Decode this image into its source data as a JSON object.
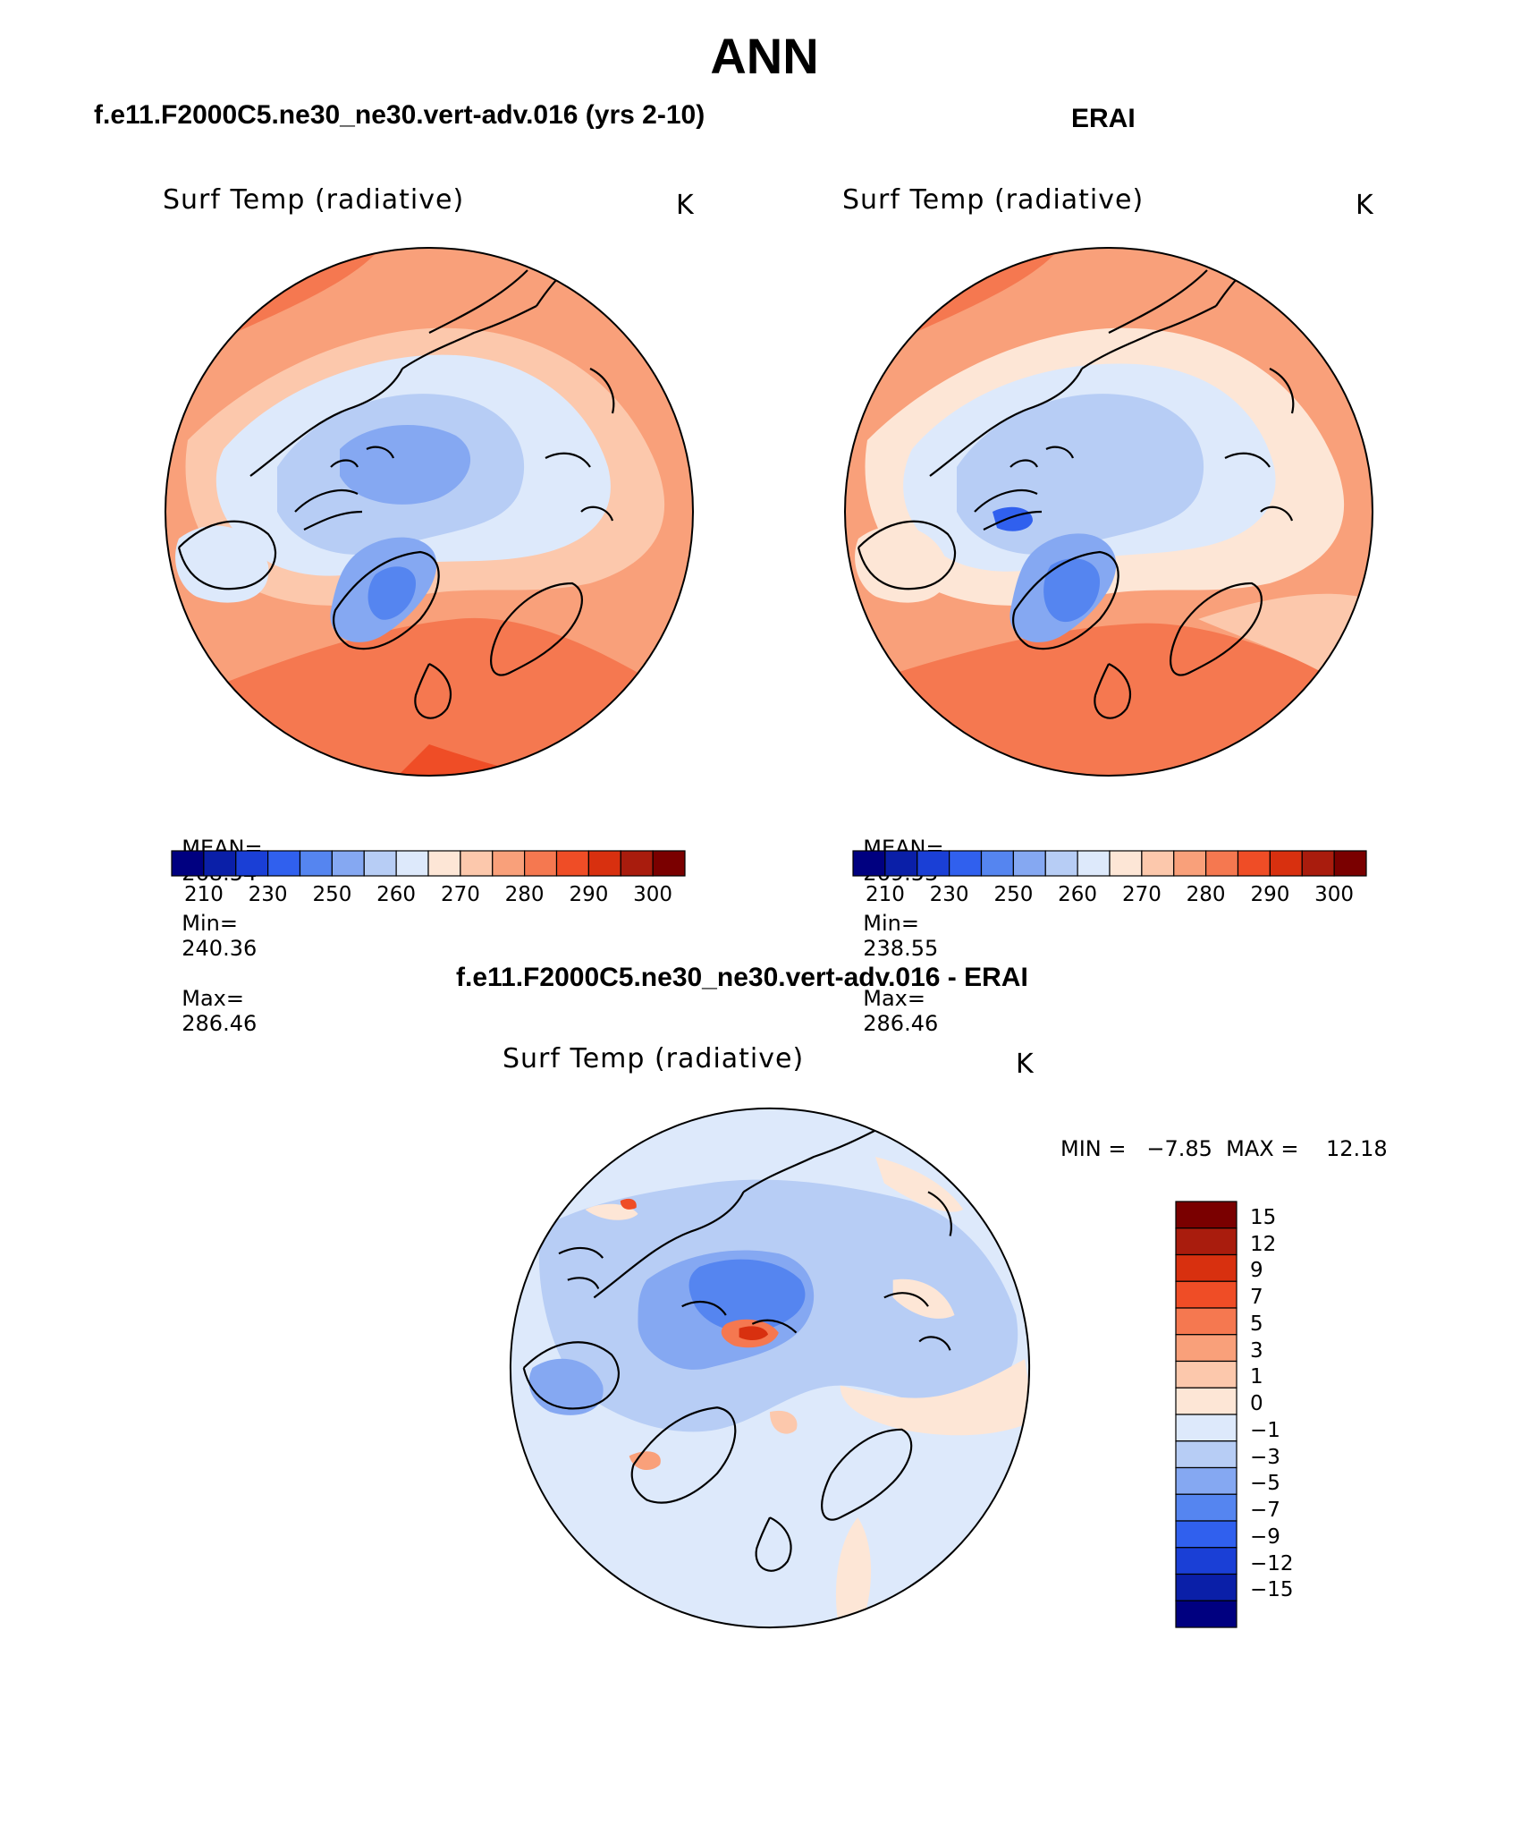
{
  "page": {
    "title": "ANN"
  },
  "panels": [
    {
      "case_title": "f.e11.F2000C5.ne30_ne30.vert-adv.016 (yrs 2-10)",
      "variable": "Surf Temp (radiative)",
      "units": "K",
      "stats": {
        "mean_label": "MEAN=",
        "mean": "268.54",
        "min_label": "Min=",
        "min": "240.36",
        "max_label": "Max=",
        "max": "286.46"
      },
      "colorbar_labels": [
        "210",
        "230",
        "250",
        "260",
        "270",
        "280",
        "290",
        "300"
      ]
    },
    {
      "case_title": "ERAI",
      "variable": "Surf Temp (radiative)",
      "units": "K",
      "stats": {
        "mean_label": "MEAN=",
        "mean": "269.53",
        "min_label": "Min=",
        "min": "238.55",
        "max_label": "Max=",
        "max": "286.46"
      },
      "colorbar_labels": [
        "210",
        "230",
        "250",
        "260",
        "270",
        "280",
        "290",
        "300"
      ]
    }
  ],
  "diff": {
    "case_title": "f.e11.F2000C5.ne30_ne30.vert-adv.016 - ERAI",
    "variable": "Surf Temp (radiative)",
    "units": "K",
    "minmax_text": "MIN =   −7.85  MAX =    12.18",
    "colorbar_labels": [
      "15",
      "12",
      "9",
      "7",
      "5",
      "3",
      "1",
      "0",
      "−1",
      "−3",
      "−5",
      "−7",
      "−9",
      "−12",
      "−15"
    ]
  },
  "colors": {
    "abs_scale": [
      "#000080",
      "#0a1fa8",
      "#1a3fd6",
      "#3060ee",
      "#5585f0",
      "#85a8f2",
      "#b7cdf5",
      "#dde9fb",
      "#fde6d6",
      "#fcc8ac",
      "#f9a07a",
      "#f57850",
      "#ef4d26",
      "#d8300f",
      "#a91c0d",
      "#7a0000"
    ],
    "diff_scale": [
      "#7a0000",
      "#a91c0d",
      "#d8300f",
      "#ef4d26",
      "#f57850",
      "#f9a07a",
      "#fcc8ac",
      "#fde6d6",
      "#dde9fb",
      "#b7cdf5",
      "#85a8f2",
      "#5585f0",
      "#3060ee",
      "#1a3fd6",
      "#0a1fa8",
      "#000080"
    ]
  }
}
